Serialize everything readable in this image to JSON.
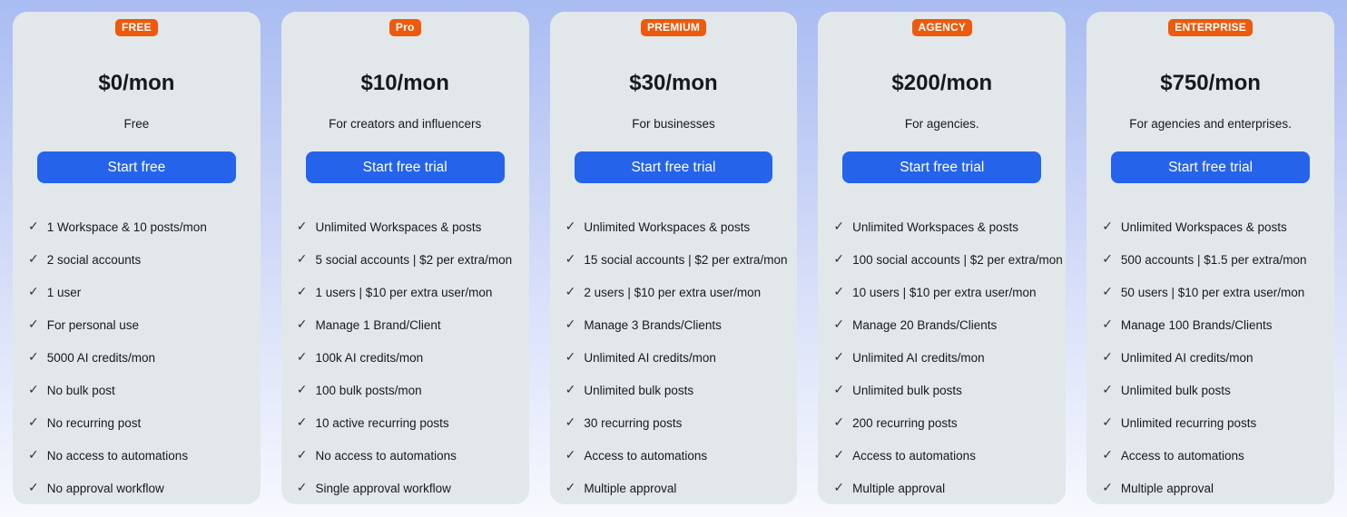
{
  "colors": {
    "page_top": "#a9bcf2",
    "page_bottom": "#f7f9fe",
    "card_bg": "#e2e8e9",
    "badge_bg": "#ee5a0c",
    "badge_text": "#ffffff",
    "button_bg": "#2563eb",
    "button_text": "#ffffff",
    "text": "#17191e",
    "check": "#2d3339"
  },
  "icons": {
    "check": "✓"
  },
  "plans": [
    {
      "badge": "FREE",
      "price": "$0/mon",
      "description": "Free",
      "button_label": "Start free",
      "features": [
        "1 Workspace & 10 posts/mon",
        "2 social accounts",
        "1 user",
        "For personal use",
        "5000 AI credits/mon",
        "No bulk post",
        "No recurring post",
        "No access to automations",
        "No approval workflow"
      ]
    },
    {
      "badge": "Pro",
      "price": "$10/mon",
      "description": "For creators and influencers",
      "button_label": "Start free trial",
      "features": [
        "Unlimited Workspaces & posts",
        "5 social accounts | $2 per extra/mon",
        "1 users | $10 per extra user/mon",
        "Manage 1 Brand/Client",
        "100k AI credits/mon",
        "100 bulk posts/mon",
        "10 active recurring posts",
        "No access to automations",
        "Single approval workflow"
      ]
    },
    {
      "badge": "PREMIUM",
      "price": "$30/mon",
      "description": "For businesses",
      "button_label": "Start free trial",
      "features": [
        "Unlimited Workspaces & posts",
        "15 social accounts | $2 per extra/mon",
        "2 users | $10 per extra user/mon",
        "Manage 3 Brands/Clients",
        "Unlimited AI credits/mon",
        "Unlimited bulk posts",
        "30 recurring posts",
        "Access to automations",
        "Multiple approval"
      ]
    },
    {
      "badge": "AGENCY",
      "price": "$200/mon",
      "description": "For agencies.",
      "button_label": "Start free trial",
      "features": [
        "Unlimited Workspaces & posts",
        "100 social accounts | $2 per extra/mon",
        "10 users | $10 per extra user/mon",
        "Manage 20 Brands/Clients",
        "Unlimited AI credits/mon",
        "Unlimited bulk posts",
        "200 recurring posts",
        "Access to automations",
        "Multiple approval"
      ]
    },
    {
      "badge": "ENTERPRISE",
      "price": "$750/mon",
      "description": "For agencies and enterprises.",
      "button_label": "Start free trial",
      "features": [
        "Unlimited Workspaces & posts",
        "500 accounts | $1.5 per extra/mon",
        "50 users | $10 per extra user/mon",
        "Manage 100 Brands/Clients",
        "Unlimited AI credits/mon",
        "Unlimited bulk posts",
        "Unlimited recurring posts",
        "Access to automations",
        "Multiple approval"
      ]
    }
  ]
}
